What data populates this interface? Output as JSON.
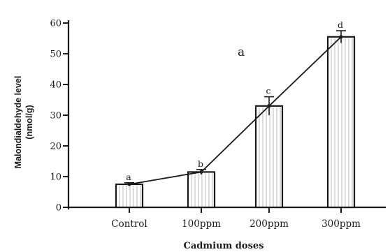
{
  "chart_data": {
    "type": "bar",
    "panel_label": "a",
    "categories": [
      "Control",
      "100ppm",
      "200ppm",
      "300ppm"
    ],
    "values": [
      7.5,
      11.5,
      33,
      55.5
    ],
    "errors": [
      0.5,
      0.8,
      3,
      2
    ],
    "significance_letters": [
      "a",
      "b",
      "c",
      "d"
    ],
    "line_overlay": true,
    "xlabel": "Cadmium doses",
    "ylabel_lines": [
      "Malondialdehyde level",
      "(nmol/g)"
    ],
    "ylim": [
      0,
      60
    ],
    "yticks": [
      0,
      10,
      20,
      30,
      40,
      50,
      60
    ],
    "ytick_labels": [
      "0",
      "10",
      "20",
      "30",
      "40",
      "50",
      "60"
    ],
    "grid": false,
    "bar_fill": "#ffffff",
    "bar_edge": "#1a1a1a",
    "hatch_color": "#b8b8b8"
  }
}
